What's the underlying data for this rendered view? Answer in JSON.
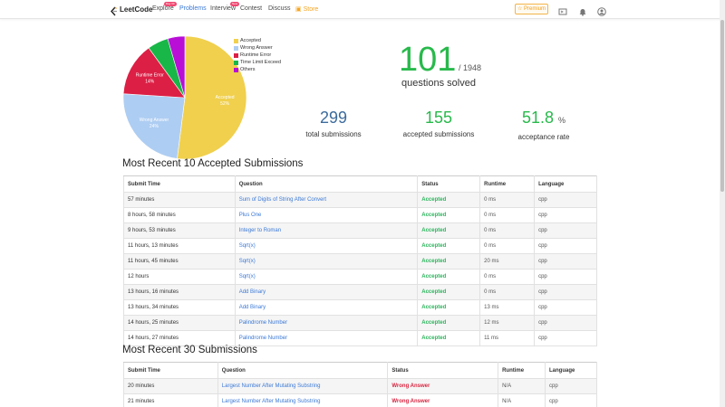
{
  "nav": {
    "logo": "LeetCode",
    "items": [
      {
        "label": "Explore",
        "badge": "Day 30"
      },
      {
        "label": "Problems"
      },
      {
        "label": "Interview",
        "badge": "New"
      },
      {
        "label": "Contest"
      },
      {
        "label": "Discuss"
      },
      {
        "label": "Store"
      }
    ],
    "premium": "Premium"
  },
  "chart_data": {
    "type": "pie",
    "slices": [
      {
        "name": "Accepted",
        "label": "Accepted",
        "pct_label": "52%",
        "value": 52,
        "color": "#f0d04d"
      },
      {
        "name": "Wrong Answer",
        "label": "Wrong Answer",
        "pct_label": "24%",
        "value": 24,
        "color": "#aecdf2"
      },
      {
        "name": "Runtime Error",
        "label": "Runtime Error",
        "pct_label": "14%",
        "value": 14,
        "color": "#dc1f45"
      },
      {
        "name": "Time Limit Exceed",
        "label": "",
        "pct_label": "",
        "value": 5.5,
        "color": "#19b748"
      },
      {
        "name": "Others",
        "label": "",
        "pct_label": "",
        "value": 4.5,
        "color": "#b80ed6"
      }
    ],
    "legend_placement": "right"
  },
  "stats": {
    "solved": "101",
    "total_problems": "/ 1948",
    "solved_label": "questions solved",
    "total_submissions": "299",
    "total_submissions_label": "total submissions",
    "accepted_submissions": "155",
    "accepted_submissions_label": "accepted submissions",
    "acceptance_rate": "51.8",
    "acceptance_rate_unit": "%",
    "acceptance_rate_label": "acceptance rate"
  },
  "accepted_section": {
    "title": "Most Recent 10 Accepted Submissions",
    "headers": [
      "Submit Time",
      "Question",
      "Status",
      "Runtime",
      "Language"
    ],
    "rows": [
      [
        "57 minutes",
        "Sum of Digits of String After Convert",
        "Accepted",
        "0 ms",
        "cpp"
      ],
      [
        "8 hours, 58 minutes",
        "Plus One",
        "Accepted",
        "0 ms",
        "cpp"
      ],
      [
        "9 hours, 53 minutes",
        "Integer to Roman",
        "Accepted",
        "0 ms",
        "cpp"
      ],
      [
        "11 hours, 13 minutes",
        "Sqrt(x)",
        "Accepted",
        "0 ms",
        "cpp"
      ],
      [
        "11 hours, 45 minutes",
        "Sqrt(x)",
        "Accepted",
        "20 ms",
        "cpp"
      ],
      [
        "12 hours",
        "Sqrt(x)",
        "Accepted",
        "0 ms",
        "cpp"
      ],
      [
        "13 hours, 16 minutes",
        "Add Binary",
        "Accepted",
        "0 ms",
        "cpp"
      ],
      [
        "13 hours, 34 minutes",
        "Add Binary",
        "Accepted",
        "13 ms",
        "cpp"
      ],
      [
        "14 hours, 25 minutes",
        "Palindrome Number",
        "Accepted",
        "12 ms",
        "cpp"
      ],
      [
        "14 hours, 27 minutes",
        "Palindrome Number",
        "Accepted",
        "11 ms",
        "cpp"
      ]
    ]
  },
  "all_section": {
    "title": "Most Recent 30 Submissions",
    "headers": [
      "Submit Time",
      "Question",
      "Status",
      "Runtime",
      "Language"
    ],
    "rows": [
      [
        "20 minutes",
        "Largest Number After Mutating Substring",
        "Wrong Answer",
        "N/A",
        "cpp"
      ],
      [
        "21 minutes",
        "Largest Number After Mutating Substring",
        "Wrong Answer",
        "N/A",
        "cpp"
      ]
    ]
  },
  "colors": {
    "accent": "#3b79d6",
    "solved_green": "#28b94b",
    "total_blue": "#3c6b9c",
    "wrong_red": "#d9253f"
  }
}
